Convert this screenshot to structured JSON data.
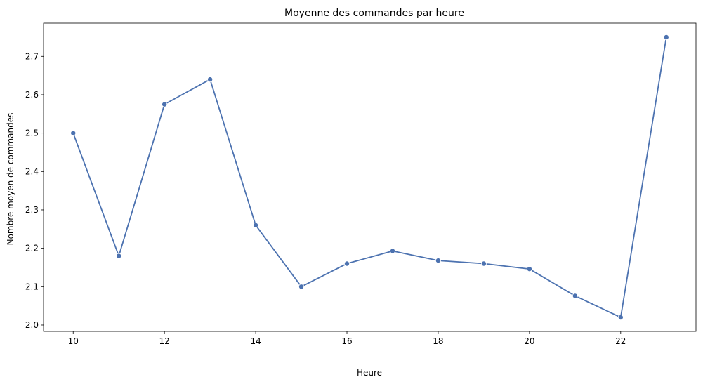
{
  "chart_data": {
    "type": "line",
    "title": "Moyenne des commandes par heure",
    "xlabel": "Heure",
    "ylabel": "Nombre moyen de commandes",
    "x": [
      10,
      11,
      12,
      13,
      14,
      15,
      16,
      17,
      18,
      19,
      20,
      21,
      22,
      23
    ],
    "series": [
      {
        "values": [
          2.5,
          2.18,
          2.575,
          2.64,
          2.26,
          2.1,
          2.16,
          2.193,
          2.168,
          2.16,
          2.146,
          2.076,
          2.02,
          2.75
        ]
      }
    ],
    "xticks": [
      10,
      12,
      14,
      16,
      18,
      20,
      22
    ],
    "xtick_labels": [
      "10",
      "12",
      "14",
      "16",
      "18",
      "20",
      "22"
    ],
    "yticks": [
      2.0,
      2.1,
      2.2,
      2.3,
      2.4,
      2.5,
      2.6,
      2.7
    ],
    "ytick_labels": [
      "2.0",
      "2.1",
      "2.2",
      "2.3",
      "2.4",
      "2.5",
      "2.6",
      "2.7"
    ],
    "xlim": [
      9.35,
      23.65
    ],
    "ylim": [
      1.9835,
      2.7865
    ],
    "grid": false,
    "markers": true,
    "colors": {
      "line": "#4c72b0",
      "marker": "#4c72b0",
      "axes": "#000000"
    }
  }
}
